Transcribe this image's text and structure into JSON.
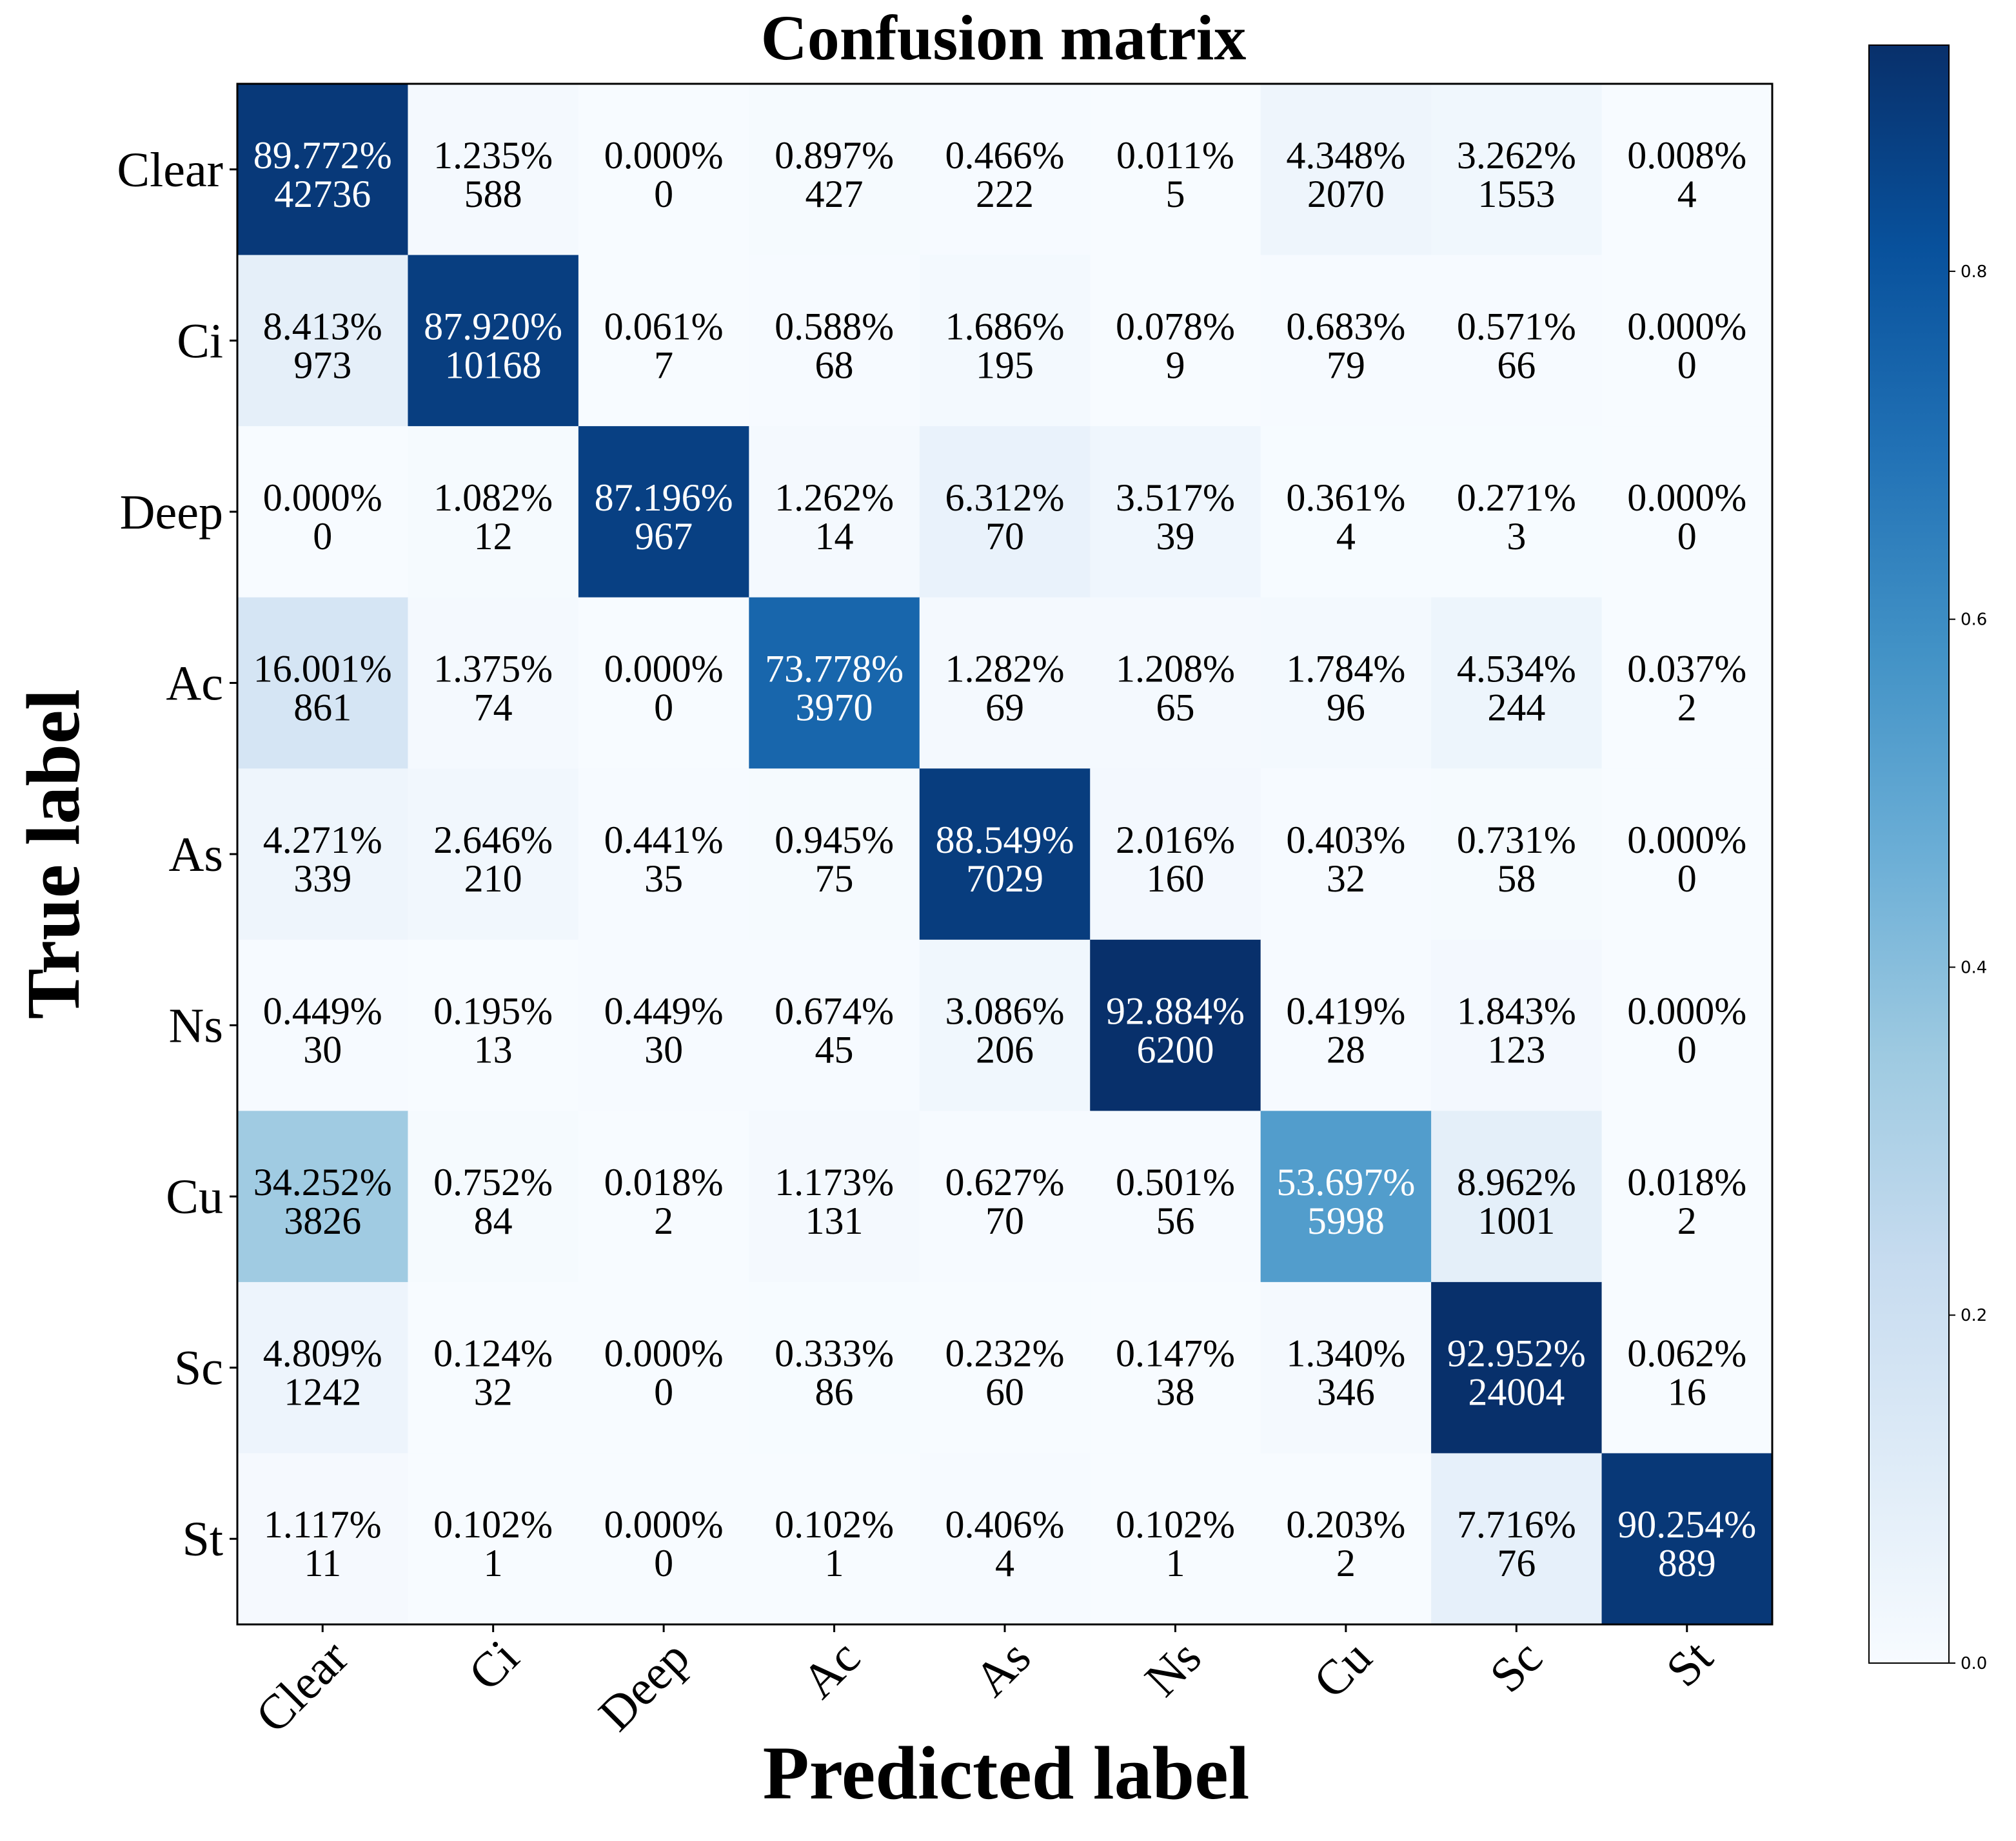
{
  "chart_data": {
    "type": "heatmap",
    "title": "Confusion matrix",
    "xlabel": "Predicted label",
    "ylabel": "True label",
    "x_categories": [
      "Clear",
      "Ci",
      "Deep",
      "Ac",
      "As",
      "Ns",
      "Cu",
      "Sc",
      "St"
    ],
    "y_categories": [
      "Clear",
      "Ci",
      "Deep",
      "Ac",
      "As",
      "Ns",
      "Cu",
      "Sc",
      "St"
    ],
    "percent_labels": [
      [
        "89.772%",
        "1.235%",
        "0.000%",
        "0.897%",
        "0.466%",
        "0.011%",
        "4.348%",
        "3.262%",
        "0.008%"
      ],
      [
        "8.413%",
        "87.920%",
        "0.061%",
        "0.588%",
        "1.686%",
        "0.078%",
        "0.683%",
        "0.571%",
        "0.000%"
      ],
      [
        "0.000%",
        "1.082%",
        "87.196%",
        "1.262%",
        "6.312%",
        "3.517%",
        "0.361%",
        "0.271%",
        "0.000%"
      ],
      [
        "16.001%",
        "1.375%",
        "0.000%",
        "73.778%",
        "1.282%",
        "1.208%",
        "1.784%",
        "4.534%",
        "0.037%"
      ],
      [
        "4.271%",
        "2.646%",
        "0.441%",
        "0.945%",
        "88.549%",
        "2.016%",
        "0.403%",
        "0.731%",
        "0.000%"
      ],
      [
        "0.449%",
        "0.195%",
        "0.449%",
        "0.674%",
        "3.086%",
        "92.884%",
        "0.419%",
        "1.843%",
        "0.000%"
      ],
      [
        "34.252%",
        "0.752%",
        "0.018%",
        "1.173%",
        "0.627%",
        "0.501%",
        "53.697%",
        "8.962%",
        "0.018%"
      ],
      [
        "4.809%",
        "0.124%",
        "0.000%",
        "0.333%",
        "0.232%",
        "0.147%",
        "1.340%",
        "92.952%",
        "0.062%"
      ],
      [
        "1.117%",
        "0.102%",
        "0.000%",
        "0.102%",
        "0.406%",
        "0.102%",
        "0.203%",
        "7.716%",
        "90.254%"
      ]
    ],
    "counts": [
      [
        42736,
        588,
        0,
        427,
        222,
        5,
        2070,
        1553,
        4
      ],
      [
        973,
        10168,
        7,
        68,
        195,
        9,
        79,
        66,
        0
      ],
      [
        0,
        12,
        967,
        14,
        70,
        39,
        4,
        3,
        0
      ],
      [
        861,
        74,
        0,
        3970,
        69,
        65,
        96,
        244,
        2
      ],
      [
        339,
        210,
        35,
        75,
        7029,
        160,
        32,
        58,
        0
      ],
      [
        30,
        13,
        30,
        45,
        206,
        6200,
        28,
        123,
        0
      ],
      [
        3826,
        84,
        2,
        131,
        70,
        56,
        5998,
        1001,
        2
      ],
      [
        1242,
        32,
        0,
        86,
        60,
        38,
        346,
        24004,
        16
      ],
      [
        11,
        1,
        0,
        1,
        4,
        1,
        2,
        76,
        889
      ]
    ],
    "colorbar": {
      "range": [
        0,
        0.93
      ],
      "ticks": [
        "0.0",
        "0.2",
        "0.4",
        "0.6",
        "0.8"
      ],
      "colormap": "Blues"
    },
    "grid": false
  }
}
